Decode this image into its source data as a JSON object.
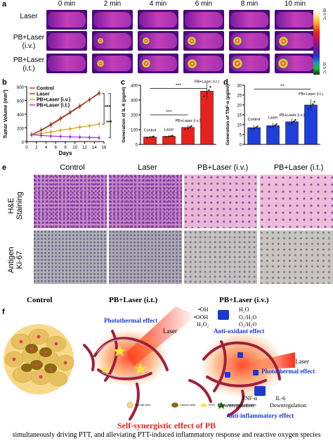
{
  "panel_a": {
    "letter": "a",
    "time_labels": [
      "0 min",
      "2 min",
      "4 min",
      "6 min",
      "8 min",
      "10 min"
    ],
    "row_labels": [
      "Laser",
      "PB+Laser\n(i.v.)",
      "PB+Laser\n(i.t.)"
    ],
    "scale_max": "65.5 °C",
    "scale_min": "33.5 °C"
  },
  "panel_b": {
    "letter": "b",
    "ylabel": "Tumor Volume (mm³)",
    "xlabel": "Days",
    "legend": [
      "Control",
      "Laser",
      "PB+Laser (i.v.)",
      "PB+Laser (i.t.)"
    ],
    "sig": [
      "***",
      "***"
    ],
    "x_ticks": [
      "0",
      "2",
      "4",
      "6",
      "8",
      "10",
      "12",
      "14",
      "16"
    ],
    "y_ticks": [
      "0",
      "200",
      "400",
      "600",
      "800"
    ]
  },
  "panel_c": {
    "letter": "c",
    "ylabel": "Generation of IL-6 (pg/ml)",
    "sig": [
      "***",
      "***"
    ],
    "y_ticks": [
      "0",
      "100",
      "200",
      "300",
      "400"
    ]
  },
  "panel_d": {
    "letter": "d",
    "ylabel": "Generation of TNF-α (pg/ml)",
    "sig": [
      "**"
    ],
    "y_ticks": [
      "0",
      "5",
      "10",
      "15",
      "20",
      "25",
      "30"
    ]
  },
  "panel_e": {
    "letter": "e",
    "col_labels": [
      "Control",
      "Laser",
      "PB+Laser (i.v.)",
      "PB+Laser (i.t.)"
    ],
    "row_labels": [
      "H&E\nStaining",
      "Antigen\nKi-67"
    ]
  },
  "panel_f": {
    "letter": "f",
    "titles": [
      "Control",
      "PB+Laser (i.t.)",
      "PB+Laser (i.v.)"
    ],
    "photothermal_1": "Photothermal effect",
    "photothermal_2": "Photothermal effect",
    "laser_1": "Laser",
    "laser_2": "Laser",
    "antioxidant": "Anti-oxidant effect",
    "antiinflammatory": "Anti-inflammatory effect",
    "ros_species": [
      "•OH",
      "•OOH",
      "H₂O₂",
      "H₂O",
      "O₂/H₂O",
      "O₂/H₂O"
    ],
    "tnf": "TNF-α",
    "il6": "IL-6",
    "downreg_1": "Downregulation",
    "downreg_2": "Downregulation",
    "legend": [
      "Normal cells",
      "Cancer cells",
      "ROS",
      "Inflammatory cytokines"
    ],
    "synergy_title": "Self-synergistic effect of PB",
    "caption": "simultaneously driving PTT, and alleviating PTT-induced inflammatory response and reactive oxygen species"
  },
  "chart_data": [
    {
      "type": "line",
      "ylabel": "Tumor Volume (mm³)",
      "xlabel": "Days",
      "x": [
        1,
        3,
        5,
        7,
        9,
        11,
        13,
        15
      ],
      "ylim": [
        0,
        800
      ],
      "xlim": [
        0,
        16
      ],
      "series": [
        {
          "name": "Control",
          "color": "#d62728",
          "values": [
            100,
            170,
            250,
            340,
            430,
            520,
            610,
            700
          ]
        },
        {
          "name": "Laser",
          "color": "#8b4513",
          "values": [
            100,
            165,
            240,
            330,
            420,
            510,
            610,
            710
          ]
        },
        {
          "name": "PB+Laser (i.v.)",
          "color": "#d4a017",
          "values": [
            100,
            120,
            140,
            165,
            185,
            210,
            230,
            255
          ]
        },
        {
          "name": "PB+Laser (i.t.)",
          "color": "#9b30d9",
          "values": [
            100,
            90,
            80,
            75,
            70,
            65,
            60,
            55
          ]
        }
      ]
    },
    {
      "type": "bar",
      "ylabel": "Generation of IL-6 (pg/ml)",
      "ylim": [
        0,
        400
      ],
      "categories": [
        "Control",
        "Laser",
        "PB+Laser (i.v.)",
        "PB+Laser (i.t.)"
      ],
      "values": [
        50,
        55,
        115,
        360
      ],
      "color": "#e8211d"
    },
    {
      "type": "bar",
      "ylabel": "Generation of TNF-α (pg/ml)",
      "ylim": [
        0,
        30
      ],
      "categories": [
        "Control",
        "Laser",
        "PB+Laser (i.v.)",
        "PB+Laser (i.t.)"
      ],
      "values": [
        8.5,
        9.5,
        11.5,
        20
      ],
      "color": "#1f3fdc"
    }
  ]
}
